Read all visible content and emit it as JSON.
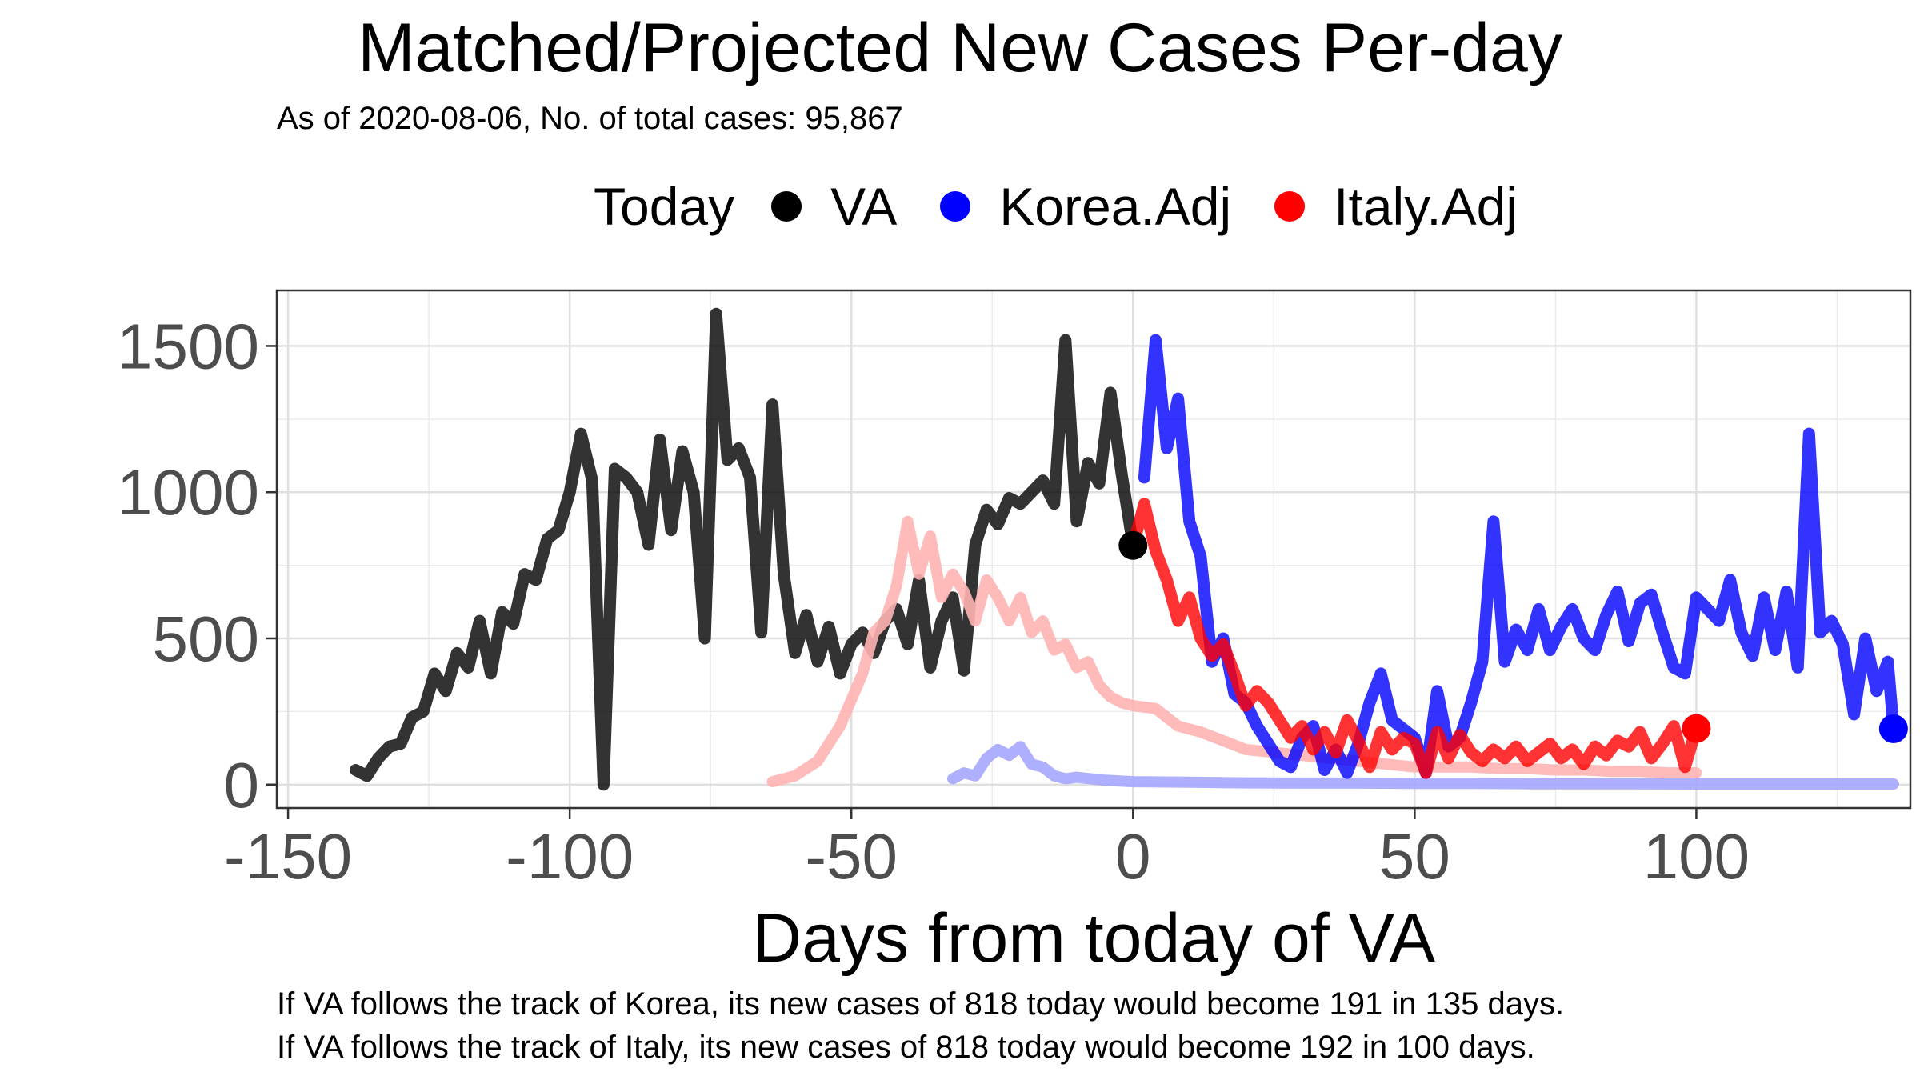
{
  "chart_data": {
    "type": "line",
    "title": "Matched/Projected New Cases Per-day",
    "subtitle": "As of 2020-08-06, No. of total cases: 95,867",
    "xlabel": "Days from today of VA",
    "ylabel": "",
    "xlim": [
      -152,
      138
    ],
    "ylim": [
      -80,
      1690
    ],
    "xticks": [
      -150,
      -100,
      -50,
      0,
      50,
      100
    ],
    "xtick_labels": [
      "-150",
      "-100",
      "-50",
      "0",
      "50",
      "100"
    ],
    "yticks": [
      0,
      500,
      1000,
      1500
    ],
    "ytick_labels": [
      "0",
      "500",
      "1000",
      "1500"
    ],
    "grid": true,
    "legend": {
      "title": "Today",
      "position": "top",
      "entries": [
        {
          "label": "VA",
          "color": "#000000"
        },
        {
          "label": "Korea.Adj",
          "color": "#0000ff"
        },
        {
          "label": "Italy.Adj",
          "color": "#ff0000"
        }
      ]
    },
    "series": [
      {
        "name": "VA",
        "color": "#000000",
        "x": [
          -138,
          -136,
          -134,
          -132,
          -130,
          -128,
          -126,
          -124,
          -122,
          -120,
          -118,
          -116,
          -114,
          -112,
          -110,
          -108,
          -106,
          -104,
          -102,
          -100,
          -98,
          -96,
          -94,
          -92,
          -90,
          -88,
          -86,
          -84,
          -82,
          -80,
          -78,
          -76,
          -74,
          -72,
          -70,
          -68,
          -66,
          -64,
          -62,
          -60,
          -58,
          -56,
          -54,
          -52,
          -50,
          -48,
          -46,
          -44,
          -42,
          -40,
          -38,
          -36,
          -34,
          -32,
          -30,
          -28,
          -26,
          -24,
          -22,
          -20,
          -18,
          -16,
          -14,
          -12,
          -10,
          -8,
          -6,
          -4,
          -2,
          0
        ],
        "y": [
          50,
          30,
          90,
          130,
          140,
          230,
          250,
          380,
          320,
          450,
          400,
          560,
          380,
          590,
          550,
          720,
          700,
          840,
          870,
          1000,
          1200,
          1040,
          0,
          1080,
          1050,
          1000,
          820,
          1180,
          870,
          1140,
          1000,
          500,
          1610,
          1110,
          1150,
          1050,
          520,
          1300,
          720,
          450,
          580,
          420,
          540,
          380,
          480,
          520,
          450,
          560,
          600,
          480,
          700,
          400,
          560,
          640,
          390,
          820,
          940,
          890,
          980,
          960,
          1000,
          1040,
          960,
          1520,
          900,
          1100,
          1030,
          1340,
          1060,
          818
        ]
      },
      {
        "name": "",
        "color": "#ffb3b3",
        "x": [
          -64,
          -60,
          -56,
          -52,
          -48,
          -46,
          -44,
          -42,
          -40,
          -38,
          -36,
          -34,
          -32,
          -30,
          -28,
          -26,
          -24,
          -22,
          -20,
          -18,
          -16,
          -14,
          -12,
          -10,
          -8,
          -6,
          -4,
          -2,
          0,
          4,
          8,
          12,
          16,
          20,
          25,
          30,
          35,
          40,
          45,
          50,
          55,
          60,
          65,
          70,
          75,
          80,
          85,
          90,
          95,
          100
        ],
        "y": [
          10,
          30,
          80,
          200,
          380,
          520,
          560,
          680,
          900,
          720,
          850,
          640,
          720,
          660,
          560,
          700,
          640,
          560,
          640,
          520,
          560,
          460,
          480,
          400,
          420,
          340,
          300,
          280,
          270,
          260,
          200,
          180,
          150,
          120,
          110,
          100,
          90,
          80,
          70,
          60,
          60,
          60,
          55,
          55,
          50,
          50,
          45,
          45,
          40,
          40
        ]
      },
      {
        "name": "",
        "color": "#a6a6ff",
        "x": [
          -32,
          -30,
          -28,
          -26,
          -24,
          -22,
          -20,
          -18,
          -16,
          -14,
          -12,
          -10,
          -5,
          0,
          10,
          20,
          30,
          40,
          50,
          60,
          70,
          80,
          90,
          100,
          110,
          120,
          135
        ],
        "y": [
          20,
          40,
          30,
          90,
          120,
          100,
          130,
          70,
          60,
          30,
          20,
          25,
          15,
          10,
          8,
          6,
          5,
          5,
          4,
          4,
          3,
          3,
          3,
          2,
          2,
          2,
          2
        ]
      },
      {
        "name": "Korea.Adj",
        "color": "#0000ff",
        "x": [
          2,
          4,
          6,
          8,
          10,
          12,
          14,
          16,
          18,
          20,
          22,
          24,
          26,
          28,
          30,
          32,
          34,
          36,
          38,
          40,
          42,
          44,
          46,
          48,
          50,
          52,
          54,
          56,
          58,
          60,
          62,
          64,
          66,
          68,
          70,
          72,
          74,
          76,
          78,
          80,
          82,
          84,
          86,
          88,
          90,
          92,
          94,
          96,
          98,
          100,
          102,
          104,
          106,
          108,
          110,
          112,
          114,
          116,
          118,
          120,
          122,
          124,
          126,
          128,
          130,
          132,
          134,
          135
        ],
        "y": [
          1050,
          1520,
          1150,
          1320,
          900,
          780,
          420,
          500,
          310,
          280,
          200,
          140,
          80,
          60,
          160,
          200,
          50,
          120,
          40,
          140,
          280,
          380,
          220,
          190,
          160,
          40,
          320,
          130,
          160,
          280,
          420,
          900,
          420,
          530,
          460,
          600,
          460,
          540,
          600,
          500,
          460,
          580,
          660,
          490,
          620,
          650,
          520,
          400,
          380,
          640,
          600,
          560,
          700,
          520,
          440,
          640,
          460,
          660,
          400,
          1200,
          520,
          560,
          480,
          240,
          500,
          320,
          420,
          191
        ]
      },
      {
        "name": "Italy.Adj",
        "color": "#ff0000",
        "x": [
          0,
          2,
          4,
          6,
          8,
          10,
          12,
          14,
          16,
          18,
          20,
          22,
          24,
          26,
          28,
          30,
          32,
          34,
          36,
          38,
          40,
          42,
          44,
          46,
          48,
          50,
          52,
          54,
          56,
          58,
          60,
          62,
          64,
          66,
          68,
          70,
          72,
          74,
          76,
          78,
          80,
          82,
          84,
          86,
          88,
          90,
          92,
          94,
          96,
          98,
          100
        ],
        "y": [
          818,
          960,
          800,
          700,
          560,
          640,
          500,
          440,
          480,
          380,
          270,
          320,
          280,
          220,
          160,
          200,
          120,
          180,
          110,
          220,
          150,
          60,
          180,
          120,
          160,
          140,
          40,
          180,
          90,
          170,
          110,
          80,
          120,
          90,
          130,
          80,
          110,
          140,
          90,
          120,
          70,
          130,
          100,
          150,
          130,
          180,
          90,
          140,
          200,
          60,
          192
        ]
      }
    ],
    "markers": [
      {
        "series": "VA",
        "x": 0,
        "y": 818
      },
      {
        "series": "Korea.Adj",
        "x": 135,
        "y": 191
      },
      {
        "series": "Italy.Adj",
        "x": 100,
        "y": 192
      }
    ]
  },
  "caption": {
    "line1": "If VA follows the track of Korea, its new cases of 818 today would become 191 in 135 days.",
    "line2": "If VA follows the track of Italy, its new cases of 818 today would become 192 in 100 days."
  }
}
